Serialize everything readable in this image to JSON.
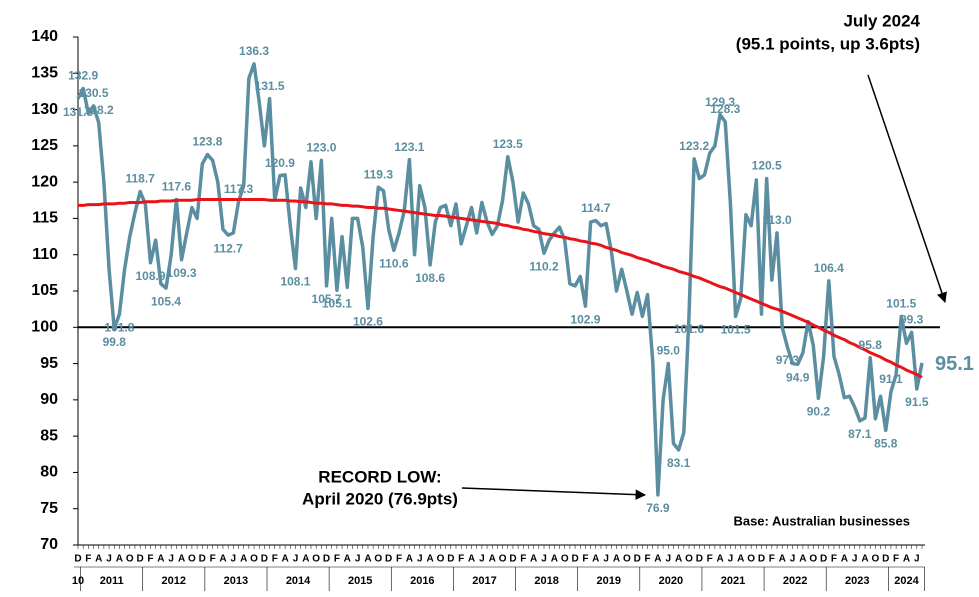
{
  "chart_data": {
    "type": "line",
    "categories": [
      "D",
      null,
      "F",
      null,
      "A",
      null,
      "J",
      null,
      "A",
      null,
      "O",
      null,
      "D",
      null,
      "F",
      null,
      "A",
      null,
      "J",
      null,
      "A",
      null,
      "O",
      null,
      "D",
      null,
      "F",
      null,
      "A",
      null,
      "J",
      null,
      "A",
      null,
      "O",
      null,
      "D",
      null,
      "F",
      null,
      "A",
      null,
      "J",
      null,
      "A",
      null,
      "O",
      null,
      "D",
      null,
      "F",
      null,
      "A",
      null,
      "J",
      null,
      "A",
      null,
      "O",
      null,
      "D",
      null,
      "F",
      null,
      "A",
      null,
      "J",
      null,
      "A",
      null,
      "O",
      null,
      "D",
      null,
      "F",
      null,
      "A",
      null,
      "J",
      null,
      "A",
      null,
      "O",
      null,
      "D",
      null,
      "F",
      null,
      "A",
      null,
      "J",
      null,
      "A",
      null,
      "O",
      null,
      "D",
      null,
      "F",
      null,
      "A",
      null,
      "J",
      null,
      "A",
      null,
      "O",
      null,
      "D",
      null,
      "F",
      null,
      "A",
      null,
      "J",
      null,
      "A",
      null,
      "O",
      null,
      "D",
      null,
      "F",
      null,
      "A",
      null,
      "J",
      null,
      "A",
      null,
      "O",
      null,
      "D",
      null,
      "F",
      null,
      "A",
      null,
      "J",
      null,
      "A",
      null,
      "O",
      null,
      "D",
      null,
      "F",
      null,
      "A",
      null,
      "J",
      null,
      "A",
      null,
      "O",
      null,
      "D",
      null,
      "F",
      null,
      "A",
      null,
      "J",
      null
    ],
    "year_labels": [
      "10",
      "2011",
      "2012",
      "2013",
      "2014",
      "2015",
      "2016",
      "2017",
      "2018",
      "2019",
      "2020",
      "2021",
      "2022",
      "2023",
      "2024"
    ],
    "series": [
      {
        "color": "#5a8ea0",
        "values": [
          131.5,
          132.9,
          129.5,
          130.5,
          128.2,
          120,
          108,
          99.8,
          101.8,
          108,
          112.5,
          115.8,
          118.7,
          117,
          108.9,
          112,
          106,
          105.4,
          110,
          117.6,
          109.3,
          113,
          116.5,
          115,
          122.5,
          123.8,
          123,
          120,
          113.5,
          112.7,
          113,
          117.3,
          119.5,
          134.3,
          136.3,
          131,
          125,
          131.5,
          117.5,
          120.9,
          121,
          114,
          108.1,
          119.2,
          116.5,
          122.8,
          115,
          123.0,
          105.7,
          115,
          105.1,
          112.5,
          105.5,
          115,
          115,
          111,
          102.6,
          112.5,
          119.3,
          118.8,
          113.5,
          110.6,
          113,
          116,
          123.1,
          110,
          119.5,
          116.5,
          108.6,
          114.5,
          116.5,
          116.8,
          114,
          117,
          111.5,
          114,
          116.5,
          113,
          117.2,
          114.5,
          112.8,
          114,
          117.5,
          123.5,
          120,
          114.5,
          118.5,
          117,
          114,
          113.5,
          110.2,
          112,
          113,
          113.8,
          112,
          106,
          105.7,
          107,
          102.9,
          114.5,
          114.7,
          114,
          114.3,
          110.5,
          105,
          108,
          105,
          101.8,
          104.8,
          101.5,
          104.5,
          95.3,
          76.9,
          90,
          95.0,
          84,
          83.1,
          85.5,
          101.6,
          123.2,
          120.5,
          121,
          124,
          125,
          129.3,
          128.3,
          117,
          101.5,
          104,
          115.5,
          114,
          120.3,
          101.8,
          120.5,
          106.5,
          113.0,
          100,
          97.3,
          95,
          94.9,
          96.5,
          100.8,
          97.5,
          90.2,
          96,
          106.4,
          96,
          93.5,
          90.3,
          90.5,
          89,
          87.1,
          87.5,
          95.8,
          87.4,
          90.5,
          85.8,
          91.1,
          93.5,
          101.5,
          97.8,
          99.3,
          91.5,
          95.1
        ],
        "value_labels": [
          "131.5",
          "132.9",
          null,
          "130.5",
          "128.2",
          null,
          null,
          "99.8",
          "101.8",
          null,
          null,
          null,
          "118.7",
          null,
          "108.9",
          null,
          null,
          "105.4",
          null,
          "117.6",
          "109.3",
          null,
          null,
          null,
          null,
          "123.8",
          null,
          null,
          null,
          "112.7",
          null,
          "117.3",
          null,
          null,
          "136.3",
          null,
          null,
          "131.5",
          null,
          "120.9",
          null,
          null,
          "108.1",
          null,
          null,
          null,
          null,
          "123.0",
          "105.7",
          null,
          "105.1",
          null,
          null,
          null,
          null,
          null,
          "102.6",
          null,
          "119.3",
          null,
          null,
          "110.6",
          null,
          null,
          "123.1",
          null,
          null,
          null,
          "108.6",
          null,
          null,
          null,
          null,
          null,
          null,
          null,
          null,
          null,
          null,
          null,
          null,
          null,
          null,
          "123.5",
          null,
          null,
          null,
          null,
          null,
          null,
          "110.2",
          null,
          null,
          null,
          null,
          null,
          null,
          null,
          "102.9",
          null,
          "114.7",
          null,
          null,
          null,
          null,
          null,
          null,
          null,
          null,
          null,
          null,
          null,
          "76.9",
          null,
          "95.0",
          null,
          "83.1",
          null,
          "101.6",
          "123.2",
          null,
          null,
          null,
          null,
          "129.3",
          "128.3",
          null,
          "101.5",
          null,
          null,
          null,
          null,
          null,
          "120.5",
          null,
          "113.0",
          null,
          "97.3",
          null,
          "94.9",
          null,
          null,
          null,
          "90.2",
          null,
          "106.4",
          null,
          null,
          null,
          null,
          null,
          "87.1",
          null,
          "95.8",
          null,
          null,
          "85.8",
          "91.1",
          null,
          "101.5",
          null,
          "99.3",
          "91.5",
          "95.1"
        ]
      },
      {
        "color": "#e8141a",
        "values": [
          116.8,
          116.8,
          116.9,
          116.9,
          116.9,
          117.0,
          117.0,
          117.0,
          117.1,
          117.1,
          117.2,
          117.2,
          117.2,
          117.3,
          117.3,
          117.3,
          117.4,
          117.4,
          117.4,
          117.5,
          117.5,
          117.5,
          117.5,
          117.6,
          117.6,
          117.6,
          117.6,
          117.6,
          117.6,
          117.6,
          117.6,
          117.6,
          117.6,
          117.6,
          117.6,
          117.6,
          117.6,
          117.5,
          117.5,
          117.5,
          117.5,
          117.4,
          117.4,
          117.3,
          117.3,
          117.2,
          117.1,
          117.1,
          117.0,
          117.0,
          116.9,
          116.8,
          116.8,
          116.7,
          116.7,
          116.6,
          116.5,
          116.5,
          116.4,
          116.4,
          116.3,
          116.2,
          116.1,
          116.0,
          115.9,
          115.8,
          115.7,
          115.6,
          115.5,
          115.4,
          115.4,
          115.3,
          115.2,
          115.1,
          115.0,
          114.9,
          114.8,
          114.7,
          114.6,
          114.5,
          114.4,
          114.3,
          114.1,
          114.0,
          113.8,
          113.7,
          113.5,
          113.4,
          113.2,
          113.1,
          112.9,
          112.8,
          112.7,
          112.5,
          112.4,
          112.2,
          112.1,
          111.9,
          111.8,
          111.6,
          111.5,
          111.3,
          111.0,
          110.8,
          110.6,
          110.3,
          110.1,
          109.9,
          109.6,
          109.4,
          109.2,
          108.9,
          108.7,
          108.4,
          108.2,
          108.0,
          107.7,
          107.5,
          107.3,
          107.0,
          106.8,
          106.5,
          106.2,
          105.9,
          105.6,
          105.4,
          105.1,
          104.8,
          104.5,
          104.2,
          103.9,
          103.6,
          103.3,
          103.0,
          102.7,
          102.5,
          102.2,
          101.9,
          101.6,
          101.3,
          101.0,
          100.7,
          100.3,
          100.0,
          99.6,
          99.3,
          98.9,
          98.6,
          98.3,
          97.9,
          97.6,
          97.2,
          96.9,
          96.5,
          96.2,
          95.9,
          95.5,
          95.2,
          94.8,
          94.5,
          94.1,
          93.8,
          93.5,
          93.1
        ]
      }
    ],
    "reference_line": 100,
    "ylim": [
      70,
      140
    ],
    "yticks": [
      70,
      75,
      80,
      85,
      90,
      95,
      100,
      105,
      110,
      115,
      120,
      125,
      130,
      135,
      140
    ],
    "annotations": {
      "latest": [
        "July 2024",
        "(95.1 points, up 3.6pts)"
      ],
      "record_low": [
        "RECORD LOW:",
        "April 2020 (76.9pts)"
      ],
      "base": "Base: Australian businesses"
    }
  }
}
